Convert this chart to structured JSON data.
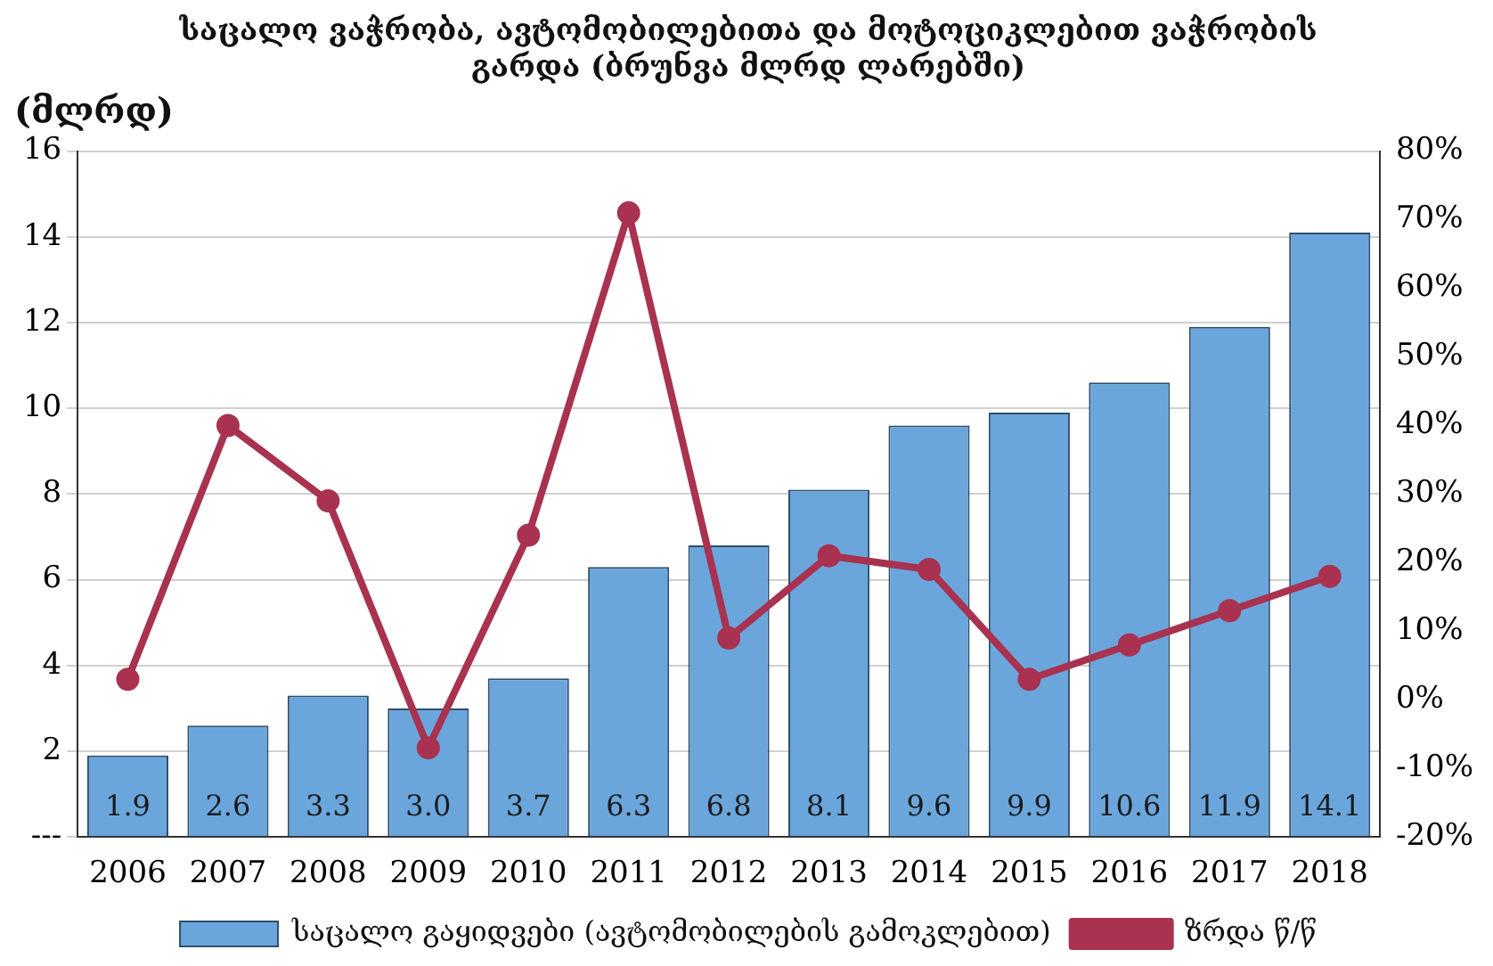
{
  "chart_data": {
    "type": "bar",
    "title": "საცალო ვაჭრობა, ავტომობილებითა და მოტოციკლებით ვაჭრობის\nგარდა (ბრუნვა მლრდ ლარებში)",
    "ylabel": "(მლრდ)",
    "categories": [
      "2006",
      "2007",
      "2008",
      "2009",
      "2010",
      "2011",
      "2012",
      "2013",
      "2014",
      "2015",
      "2016",
      "2017",
      "2018"
    ],
    "series": [
      {
        "name": "საცალო გაყიდვები (ავტომობილების გამოკლებით)",
        "color": "#6aa6dc",
        "values": [
          1.9,
          2.6,
          3.3,
          3.0,
          3.7,
          6.3,
          6.8,
          8.1,
          9.6,
          9.9,
          10.6,
          11.9,
          14.1
        ],
        "value_labels": [
          "1.9",
          "2.6",
          "3.3",
          "3.0",
          "3.7",
          "6.3",
          "6.8",
          "8.1",
          "9.6",
          "9.9",
          "10.6",
          "11.9",
          "14.1"
        ]
      },
      {
        "name": "ზრდა წ/წ",
        "type": "line",
        "axis": "y2",
        "color": "#a8324f",
        "marker": "circle",
        "values": [
          3,
          40,
          29,
          -7,
          24,
          71,
          9,
          21,
          19,
          3,
          8,
          13,
          18
        ]
      }
    ],
    "ylim": [
      0,
      16
    ],
    "yticks": [
      {
        "value": 0,
        "label": "---"
      },
      2,
      4,
      6,
      8,
      10,
      12,
      14,
      16
    ],
    "y2lim": [
      -20,
      80
    ],
    "y2ticks": [
      {
        "value": -20,
        "label": "-20%"
      },
      {
        "value": -10,
        "label": "-10%"
      },
      {
        "value": 0,
        "label": "0%"
      },
      {
        "value": 10,
        "label": "10%"
      },
      {
        "value": 20,
        "label": "20%"
      },
      {
        "value": 30,
        "label": "30%"
      },
      {
        "value": 40,
        "label": "40%"
      },
      {
        "value": 50,
        "label": "50%"
      },
      {
        "value": 60,
        "label": "60%"
      },
      {
        "value": 70,
        "label": "70%"
      },
      {
        "value": 80,
        "label": "80%"
      }
    ],
    "grid": "y",
    "legend": "bottom"
  }
}
